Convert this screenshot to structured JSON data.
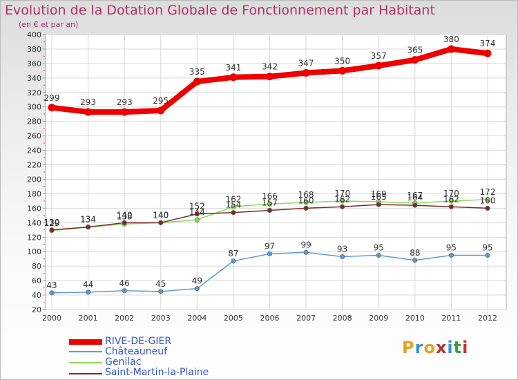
{
  "chart_data": {
    "type": "line",
    "title": "Evolution de la Dotation Globale de Fonctionnement par Habitant",
    "subtitle": "(en € et par an)",
    "xlabel": "",
    "ylabel": "",
    "ylim": [
      20,
      400
    ],
    "ytick_step": 20,
    "grid": true,
    "categories": [
      "2000",
      "2001",
      "2002",
      "2003",
      "2004",
      "2005",
      "2006",
      "2007",
      "2008",
      "2009",
      "2010",
      "2011",
      "2012"
    ],
    "series": [
      {
        "name": "RIVE-DE-GIER",
        "color": "#ee0000",
        "values": [
          299,
          293,
          293,
          295,
          335,
          341,
          342,
          347,
          350,
          357,
          365,
          380,
          374
        ],
        "labels": [
          "299",
          "293",
          "293",
          "295",
          "335",
          "341",
          "342",
          "347",
          "350",
          "357",
          "365",
          "380",
          "374"
        ]
      },
      {
        "name": "Châteauneuf",
        "color": "#5a9bd4",
        "values": [
          43,
          44,
          46,
          45,
          49,
          87,
          97,
          99,
          93,
          95,
          88,
          95,
          95
        ],
        "labels": [
          "43",
          "44",
          "46",
          "45",
          "49",
          "87",
          "97",
          "99",
          "93",
          "95",
          "88",
          "95",
          "95"
        ]
      },
      {
        "name": "Genilac",
        "color": "#88dd55",
        "values": [
          129,
          134,
          138,
          140,
          144,
          162,
          166,
          168,
          170,
          169,
          167,
          170,
          172
        ],
        "labels": [
          "129",
          "134",
          "138",
          "140",
          "144",
          "162",
          "166",
          "168",
          "170",
          "169",
          "167",
          "170",
          "172"
        ]
      },
      {
        "name": "Saint-Martin-la-Plaine",
        "color": "#7a2c22",
        "values": [
          130,
          134,
          140,
          140,
          152,
          154,
          157,
          160,
          162,
          165,
          164,
          162,
          160
        ],
        "labels": [
          "130",
          "134",
          "140",
          "140",
          "152",
          "154",
          "157",
          "160",
          "162",
          "165",
          "164",
          "162",
          "160"
        ]
      }
    ],
    "legend_position": "bottom-left"
  },
  "logo": {
    "text": "Proxiti",
    "letters": [
      "P",
      "r",
      "o",
      "x",
      "i",
      "t",
      "i"
    ],
    "colors": [
      "#e8a020",
      "#3a8fd0",
      "#e8a020",
      "#c03030",
      "#3a8fd0",
      "#40a040",
      "#c03030"
    ]
  }
}
